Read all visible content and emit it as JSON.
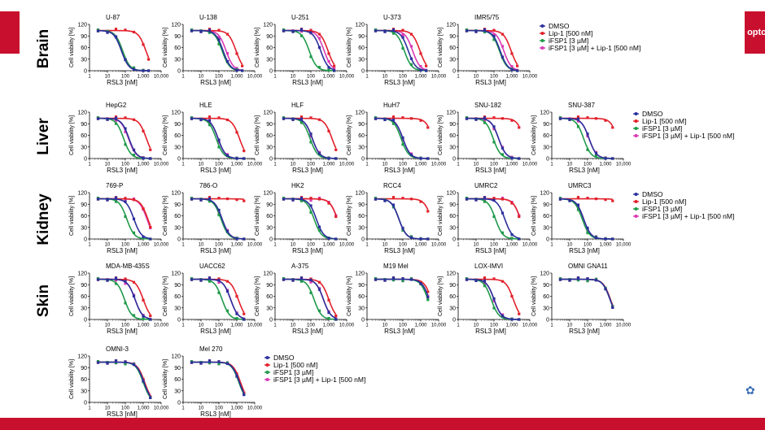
{
  "badge_text": "opto",
  "corner_icon": "logo-mark-icon",
  "colors": {
    "DMSO": "#2b2f9b",
    "Lip1": "#e2202a",
    "iFSP1": "#1f9a4a",
    "combo": "#d93ab4"
  },
  "tissues": [
    "Brain",
    "Liver",
    "Kidney",
    "Skin"
  ],
  "legend_labels": [
    "DMSO",
    "Lip-1 [500 nM]",
    "iFSP1 [3 µM]",
    "iFSP1 [3 µM] + Lip-1 [500 nM]"
  ],
  "chart_data": {
    "type": "line",
    "xlabel": "RSL3 [nM]",
    "ylabel": "Cell viability [%]",
    "x_scale": "log",
    "xlim": [
      1,
      10000
    ],
    "ylim": [
      0,
      120
    ],
    "x_ticks": [
      "1",
      "10",
      "100",
      "1,000",
      "10,000"
    ],
    "y_ticks": [
      "0",
      "30",
      "60",
      "90",
      "120"
    ],
    "series_names": [
      "DMSO",
      "Lip-1 [500 nM]",
      "iFSP1 [3 µM]",
      "iFSP1 [3 µM] + Lip-1 [500 nM]"
    ],
    "panels": [
      {
        "title": "U-87",
        "ic50": {
          "DMSO": 60,
          "Lip1": 1400,
          "iFSP1": 70,
          "combo": 70
        },
        "legend": false,
        "xmax": 2000
      },
      {
        "title": "U-138",
        "ic50": {
          "DMSO": 170,
          "Lip1": 900,
          "iFSP1": 150,
          "combo": 250
        },
        "legend": false,
        "xmax": 2000
      },
      {
        "title": "U-251",
        "ic50": {
          "DMSO": 350,
          "Lip1": 900,
          "iFSP1": 80,
          "combo": 550
        },
        "legend": false,
        "xmax": 2000
      },
      {
        "title": "U-373",
        "ic50": {
          "DMSO": 200,
          "Lip1": 900,
          "iFSP1": 120,
          "combo": 350
        },
        "legend": false,
        "xmax": 2000
      },
      {
        "title": "IMR5/75",
        "ic50": {
          "DMSO": 220,
          "Lip1": 900,
          "iFSP1": 200,
          "combo": 350
        },
        "legend": true,
        "xmax": 2000
      },
      {
        "title": "HepG2",
        "ic50": {
          "DMSO": 160,
          "Lip1": 1500,
          "iFSP1": 80,
          "combo": 150
        },
        "legend": false,
        "xmax": 2500
      },
      {
        "title": "HLE",
        "ic50": {
          "DMSO": 90,
          "Lip1": 1400,
          "iFSP1": 70,
          "combo": 90
        },
        "legend": false,
        "xmax": 2500
      },
      {
        "title": "HLF",
        "ic50": {
          "DMSO": 120,
          "Lip1": 1500,
          "iFSP1": 90,
          "combo": 120
        },
        "legend": false,
        "xmax": 2500
      },
      {
        "title": "HuH7",
        "ic50": {
          "DMSO": 100,
          "Lip1": 5000,
          "iFSP1": 80,
          "combo": 100
        },
        "legend": false,
        "xmax": 2500
      },
      {
        "title": "SNU-182",
        "ic50": {
          "DMSO": 180,
          "Lip1": 5000,
          "iFSP1": 90,
          "combo": 180
        },
        "legend": false,
        "xmax": 2500
      },
      {
        "title": "SNU-387",
        "ic50": {
          "DMSO": 120,
          "Lip1": 5000,
          "iFSP1": 60,
          "combo": 120
        },
        "legend": true,
        "xmax": 2500
      },
      {
        "title": "769-P",
        "ic50": {
          "DMSO": 300,
          "Lip1": 1800,
          "iFSP1": 120,
          "combo": 1600
        },
        "legend": false,
        "xmax": 2500
      },
      {
        "title": "786-O",
        "ic50": {
          "DMSO": 150,
          "Lip1": 20000,
          "iFSP1": 130,
          "combo": 150
        },
        "legend": false,
        "xmax": 2500
      },
      {
        "title": "HK2",
        "ic50": {
          "DMSO": 200,
          "Lip1": 3000,
          "iFSP1": 150,
          "combo": 3000
        },
        "legend": false,
        "xmax": 2500
      },
      {
        "title": "RCC4",
        "ic50": {
          "DMSO": 60,
          "Lip1": 4000,
          "iFSP1": 60,
          "combo": 60
        },
        "legend": false,
        "xmax": 2500
      },
      {
        "title": "UMRC2",
        "ic50": {
          "DMSO": 400,
          "Lip1": 3000,
          "iFSP1": 120,
          "combo": 3000
        },
        "legend": false,
        "xmax": 2500
      },
      {
        "title": "UMRC3",
        "ic50": {
          "DMSO": 60,
          "Lip1": 20000,
          "iFSP1": 50,
          "combo": 60
        },
        "legend": true,
        "xmax": 2500
      },
      {
        "title": "MDA-MB-435S",
        "ic50": {
          "DMSO": 350,
          "Lip1": 1000,
          "iFSP1": 90,
          "combo": 350
        },
        "legend": false,
        "xmax": 2500
      },
      {
        "title": "UACC62",
        "ic50": {
          "DMSO": 450,
          "Lip1": 1200,
          "iFSP1": 150,
          "combo": 450
        },
        "legend": false,
        "xmax": 2500
      },
      {
        "title": "A-375",
        "ic50": {
          "DMSO": 500,
          "Lip1": 1000,
          "iFSP1": 150,
          "combo": 500
        },
        "legend": false,
        "xmax": 2500
      },
      {
        "title": "M19 Mel",
        "ic50": {
          "DMSO": 3000,
          "Lip1": 4000,
          "iFSP1": 2500,
          "combo": 3000
        },
        "legend": false,
        "xmax": 2500
      },
      {
        "title": "LOX-IMVI",
        "ic50": {
          "DMSO": 100,
          "Lip1": 1200,
          "iFSP1": 70,
          "combo": 100
        },
        "legend": false,
        "xmax": 2500
      },
      {
        "title": "OMNI GNA11",
        "ic50": {
          "DMSO": 1800,
          "Lip1": 1900,
          "iFSP1": 1800,
          "combo": 1800
        },
        "legend": false,
        "xmax": 2500
      },
      {
        "title": "OMNI-3",
        "ic50": {
          "DMSO": 1100,
          "Lip1": 1200,
          "iFSP1": 1000,
          "combo": 1100
        },
        "legend": false,
        "xmax": 2500
      },
      {
        "title": "Mel 270",
        "ic50": {
          "DMSO": 1400,
          "Lip1": 1600,
          "iFSP1": 1300,
          "combo": 1400
        },
        "legend": true,
        "xmax": 2500
      }
    ]
  }
}
